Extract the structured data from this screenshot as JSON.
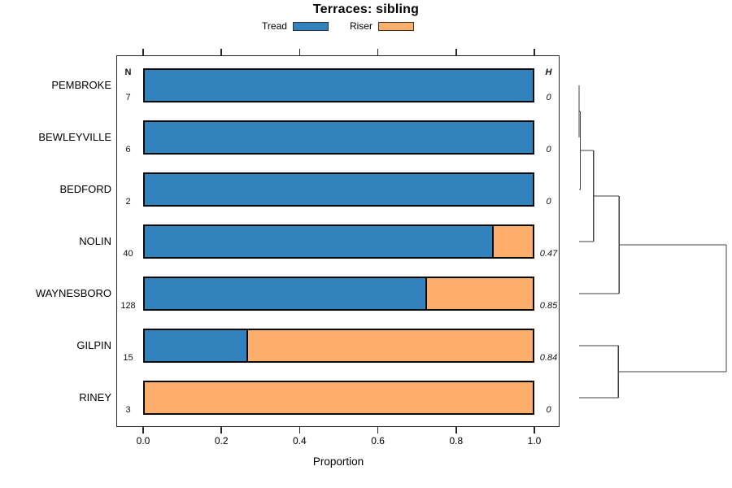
{
  "chart_data": {
    "type": "bar",
    "subtype": "horizontal-stacked-with-dendrogram",
    "title": "Terraces: sibling",
    "xlabel": "Proportion",
    "xlim": [
      0,
      1
    ],
    "xticks": [
      0.0,
      0.2,
      0.4,
      0.6,
      0.8,
      1.0
    ],
    "xtick_labels": [
      "0.0",
      "0.2",
      "0.4",
      "0.6",
      "0.8",
      "1.0"
    ],
    "grid": false,
    "legend_position": "top-center",
    "legend": [
      {
        "label": "Tread",
        "color": "#3182bd"
      },
      {
        "label": "Riser",
        "color": "#fdae6b"
      }
    ],
    "columns": {
      "n_header": "N",
      "h_header": "H"
    },
    "rows": [
      {
        "site": "PEMBROKE",
        "n": 7,
        "tread": 1.0,
        "riser": 0.0,
        "h": "0"
      },
      {
        "site": "BEWLEYVILLE",
        "n": 6,
        "tread": 1.0,
        "riser": 0.0,
        "h": "0"
      },
      {
        "site": "BEDFORD",
        "n": 2,
        "tread": 1.0,
        "riser": 0.0,
        "h": "0"
      },
      {
        "site": "NOLIN",
        "n": 40,
        "tread": 0.9,
        "riser": 0.1,
        "h": "0.47"
      },
      {
        "site": "WAYNESBORO",
        "n": 128,
        "tread": 0.727,
        "riser": 0.273,
        "h": "0.85"
      },
      {
        "site": "GILPIN",
        "n": 15,
        "tread": 0.267,
        "riser": 0.733,
        "h": "0.84"
      },
      {
        "site": "RINEY",
        "n": 3,
        "tread": 0.0,
        "riser": 1.0,
        "h": "0"
      }
    ],
    "dendrogram": {
      "leaf_order": [
        "PEMBROKE",
        "BEWLEYVILLE",
        "BEDFORD",
        "NOLIN",
        "WAYNESBORO",
        "GILPIN",
        "RINEY"
      ],
      "height_axis_labeled": false,
      "merges": [
        {
          "a": "leaf:0",
          "b": "leaf:1",
          "height_frac": 0.0
        },
        {
          "a": "merge:0",
          "b": "leaf:2",
          "height_frac": 0.008
        },
        {
          "a": "merge:1",
          "b": "leaf:3",
          "height_frac": 0.098
        },
        {
          "a": "merge:2",
          "b": "leaf:4",
          "height_frac": 0.272
        },
        {
          "a": "leaf:5",
          "b": "leaf:6",
          "height_frac": 0.267
        },
        {
          "a": "merge:3",
          "b": "merge:4",
          "height_frac": 1.0
        }
      ]
    },
    "colors": {
      "tread": "#3182bd",
      "riser": "#fdae6b",
      "bar_border": "#0a0a0a",
      "frame": "#262626",
      "dendrogram_line": "#404040",
      "text": "#000000"
    }
  }
}
